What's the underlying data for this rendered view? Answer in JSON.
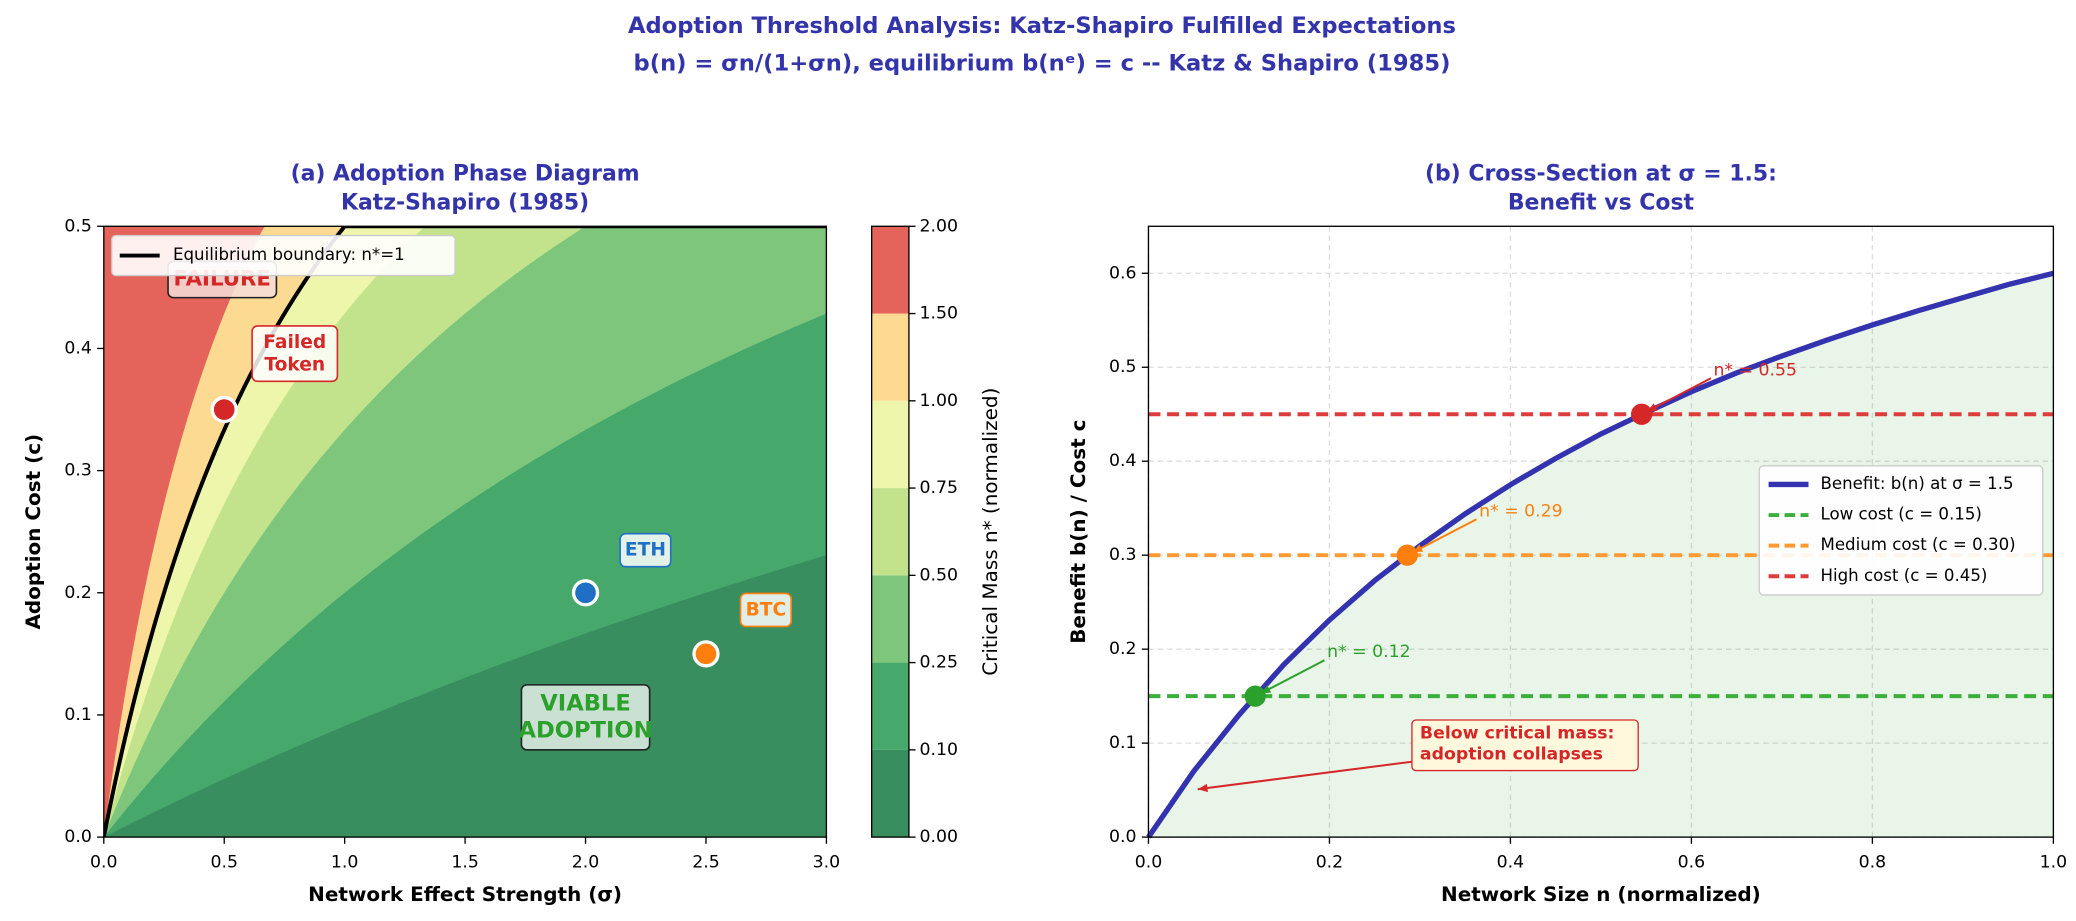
{
  "title": "Adoption Threshold Analysis: Katz-Shapiro Fulfilled Expectations",
  "subtitle": "b(n) = σn/(1+σn), equilibrium b(nᵉ) = c -- Katz & Shapiro (1985)",
  "chart_data": [
    {
      "type": "contour",
      "title": [
        "(a) Adoption Phase Diagram",
        "Katz-Shapiro (1985)"
      ],
      "xlabel": "Network Effect Strength (σ)",
      "ylabel": "Adoption Cost (c)",
      "xlim": [
        0,
        3
      ],
      "ylim": [
        0,
        0.5
      ],
      "xticks": [
        {
          "value": 0,
          "label": "0.0"
        },
        0.5,
        {
          "value": 1,
          "label": "1.0"
        },
        1.5,
        {
          "value": 2,
          "label": "2.0"
        },
        2.5,
        {
          "value": 3,
          "label": "3.0"
        }
      ],
      "yticks": [
        {
          "value": 0,
          "label": "0.0"
        },
        0.1,
        0.2,
        0.3,
        0.4,
        0.5
      ],
      "colorbar": {
        "label": "Critical Mass n* (normalized)",
        "levels": [
          {
            "value": 0,
            "label": "0.00"
          },
          {
            "value": 0.1,
            "label": "0.10"
          },
          {
            "value": 0.25,
            "label": "0.25"
          },
          {
            "value": 0.5,
            "label": "0.50"
          },
          {
            "value": 0.75,
            "label": "0.75"
          },
          {
            "value": 1,
            "label": "1.00"
          },
          {
            "value": 1.5,
            "label": "1.50"
          },
          {
            "value": 2,
            "label": "2.00"
          }
        ],
        "colors": [
          "#388e5f",
          "#47a86c",
          "#7fc67d",
          "#c2e38c",
          "#eef6ab",
          "#fdda91",
          "#e4635a"
        ]
      },
      "boundary": {
        "label": "Equilibrium boundary: n*=1",
        "value": 1,
        "color": "#000000"
      },
      "points": [
        {
          "label": [
            "Failed",
            "Token"
          ],
          "x": 0.5,
          "y": 0.35,
          "color": "#d62728"
        },
        {
          "label": [
            "ETH"
          ],
          "x": 2,
          "y": 0.2,
          "color": "#1f6fc5"
        },
        {
          "label": [
            "BTC"
          ],
          "x": 2.5,
          "y": 0.15,
          "color": "#ff7f0e"
        }
      ],
      "annotations": [
        {
          "text": [
            "FAILURE"
          ],
          "color": "#d62728"
        },
        {
          "text": [
            "VIABLE",
            "ADOPTION"
          ],
          "color": "#2ca02c"
        }
      ]
    },
    {
      "type": "line",
      "title": [
        "(b) Cross-Section at σ = 1.5:",
        "Benefit vs Cost"
      ],
      "xlabel": "Network Size n (normalized)",
      "ylabel": "Benefit b(n) / Cost c",
      "xlim": [
        0,
        1
      ],
      "ylim": [
        0,
        0.65
      ],
      "xticks": [
        {
          "value": 0,
          "label": "0.0"
        },
        0.2,
        0.4,
        0.6,
        0.8,
        {
          "value": 1,
          "label": "1.0"
        }
      ],
      "yticks": [
        {
          "value": 0,
          "label": "0.0"
        },
        0.1,
        0.2,
        0.3,
        0.4,
        0.5,
        0.6
      ],
      "grid": true,
      "x": [
        0,
        0.05,
        0.1,
        0.15,
        0.2,
        0.25,
        0.3,
        0.35,
        0.4,
        0.45,
        0.5,
        0.55,
        0.6,
        0.65,
        0.7,
        0.75,
        0.8,
        0.85,
        0.9,
        0.95,
        1
      ],
      "series": [
        {
          "name": "Benefit: b(n) at σ = 1.5",
          "color": "#3333b0",
          "values": [
            0,
            0.07,
            0.13,
            0.184,
            0.231,
            0.273,
            0.31,
            0.344,
            0.375,
            0.403,
            0.429,
            0.452,
            0.474,
            0.494,
            0.512,
            0.529,
            0.545,
            0.56,
            0.574,
            0.588,
            0.6
          ]
        }
      ],
      "hlines": [
        {
          "name": "Low cost (c = 0.15)",
          "color": "#3cae3c",
          "value": 0.15
        },
        {
          "name": "Medium cost (c = 0.30)",
          "color": "#ff9a33",
          "value": 0.3
        },
        {
          "name": "High cost (c = 0.45)",
          "color": "#dd3c3c",
          "value": 0.45
        }
      ],
      "points": [
        {
          "label": "n* = 0.12",
          "x": 0.118,
          "y": 0.15,
          "color": "#2ca02c"
        },
        {
          "label": "n* = 0.29",
          "x": 0.286,
          "y": 0.3,
          "color": "#ff7f0e"
        },
        {
          "label": "n* = 0.55",
          "x": 0.545,
          "y": 0.45,
          "color": "#d62728"
        }
      ],
      "annotation": {
        "text": [
          "Below critical mass:",
          "adoption collapses"
        ],
        "color": "#d62728"
      }
    }
  ]
}
